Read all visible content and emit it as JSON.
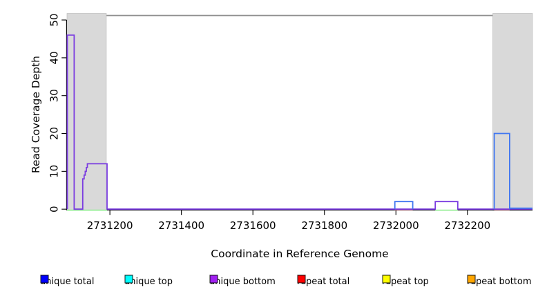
{
  "chart_data": {
    "type": "line",
    "title": "",
    "xlabel": "Coordinate in Reference Genome",
    "ylabel": "Read Coverage Depth",
    "xlim": [
      2731080,
      2732382
    ],
    "ylim": [
      0,
      50
    ],
    "x_ticks": [
      2731200,
      2731400,
      2731600,
      2731800,
      2732000,
      2732200
    ],
    "x_tick_labels": [
      "2731200",
      "2731400",
      "2731600",
      "2731800",
      "2732000",
      "2732200"
    ],
    "y_ticks": [
      0,
      10,
      20,
      30,
      40,
      50
    ],
    "y_tick_labels": [
      "0",
      "10",
      "20",
      "30",
      "40",
      "50"
    ],
    "grid": false,
    "legend_position": "bottom",
    "top_boundary_line_color": "#8f8f8f",
    "shaded_region_color": "#d9d9d9",
    "shaded_regions": [
      {
        "name": "left-masked-region",
        "x0": 2731080,
        "x1": 2731190
      },
      {
        "name": "right-masked-region",
        "x0": 2732271,
        "x1": 2732382
      }
    ],
    "series": [
      {
        "name": "unique bottom",
        "legend_color": "#a020f0",
        "render_color": "#7a3ce0",
        "subpaths": [
          {
            "dy": 0,
            "points": [
              [
                2731081,
                0
              ],
              [
                2731081,
                46
              ],
              [
                2731100,
                46
              ],
              [
                2731100,
                0
              ],
              [
                2731124,
                0
              ],
              [
                2731124,
                8
              ],
              [
                2731128,
                8
              ],
              [
                2731128,
                9
              ],
              [
                2731131,
                9
              ],
              [
                2731131,
                10
              ],
              [
                2731134,
                10
              ],
              [
                2731134,
                11
              ],
              [
                2731137,
                11
              ],
              [
                2731137,
                12
              ],
              [
                2731192,
                12
              ],
              [
                2731192,
                0
              ],
              [
                2732110,
                0
              ],
              [
                2732110,
                2
              ],
              [
                2732173,
                2
              ],
              [
                2732173,
                0
              ],
              [
                2732382,
                0
              ]
            ]
          }
        ]
      },
      {
        "name": "unique total",
        "legend_color": "#0000ff",
        "render_color": "#4177f0",
        "subpaths": [
          {
            "dy": 0,
            "points": [
              [
                2731997,
                0
              ],
              [
                2731997,
                2
              ],
              [
                2732047,
                2
              ],
              [
                2732047,
                0
              ]
            ]
          },
          {
            "dy": 0,
            "points": [
              [
                2732275,
                0
              ],
              [
                2732275,
                20
              ],
              [
                2732318,
                20
              ],
              [
                2732318,
                0
              ]
            ]
          },
          {
            "dy": -1.4,
            "points": [
              [
                2732318,
                0
              ],
              [
                2732382,
                0
              ]
            ]
          }
        ]
      }
    ],
    "baseline_overlays": [
      {
        "name": "repeat total at zero",
        "render_color": "#f4747b",
        "dy": 0.7,
        "segments": [
          [
            2731997,
            2732047
          ],
          [
            2732275,
            2732318
          ]
        ]
      },
      {
        "name": "top-strand overlap at zero (appears light green)",
        "render_color": "#90ee90",
        "dy": 1.5,
        "segments": [
          [
            2731080,
            2731192
          ],
          [
            2732110,
            2732173
          ]
        ]
      }
    ],
    "legend": [
      {
        "label": "unique total",
        "color": "#0000ff"
      },
      {
        "label": "unique top",
        "color": "#00ffff"
      },
      {
        "label": "unique bottom",
        "color": "#a020f0"
      },
      {
        "label": "repeat total",
        "color": "#ff0000"
      },
      {
        "label": "repeat top",
        "color": "#ffff00"
      },
      {
        "label": "repeat bottom",
        "color": "#ffa500"
      }
    ]
  }
}
